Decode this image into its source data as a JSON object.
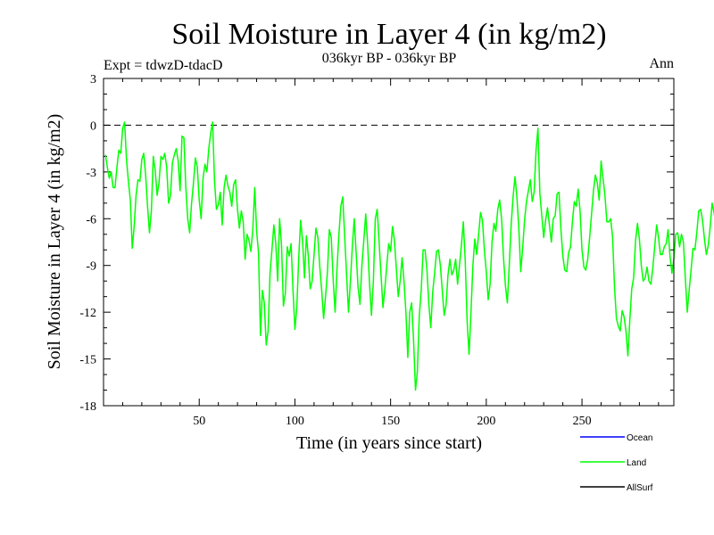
{
  "chart_data": {
    "type": "line",
    "title": "Soil Moisture in Layer 4 (in kg/m2)",
    "subtitle": "036kyr BP - 036kyr BP",
    "experiment": "Expt = tdwzD-tdacD",
    "period": "Ann",
    "xlabel": "Time (in years since start)",
    "ylabel": "Soil Moisture in Layer 4 (in kg/m2)",
    "xlim": [
      0,
      298
    ],
    "ylim": [
      -18,
      3
    ],
    "x_ticks": [
      50,
      100,
      150,
      200,
      250
    ],
    "x_tick_labels": [
      "50",
      "100",
      "150",
      "200",
      "250"
    ],
    "y_ticks": [
      3,
      0,
      -3,
      -6,
      -9,
      -12,
      -15,
      -18
    ],
    "y_tick_labels": [
      "3",
      "0",
      "-3",
      "-6",
      "-9",
      "-12",
      "-15",
      "-18"
    ],
    "reference_line": 0,
    "legend_position": "bottom-right",
    "series": [
      {
        "name": "Ocean",
        "color": "#0000ff",
        "values": []
      },
      {
        "name": "Land",
        "color": "#00ff00",
        "x_start": 1,
        "x_step": 1,
        "values": [
          -1.9,
          -2.7,
          -3.4,
          -3.0,
          -4.0,
          -4.0,
          -2.7,
          -1.6,
          -1.8,
          -0.2,
          0.2,
          -2.2,
          -3.6,
          -4.8,
          -7.9,
          -6.5,
          -4.5,
          -3.5,
          -3.6,
          -2.2,
          -1.8,
          -3.2,
          -5.2,
          -6.9,
          -5.5,
          -2.0,
          -2.9,
          -4.5,
          -3.7,
          -2.0,
          -2.2,
          -1.8,
          -2.7,
          -5.0,
          -4.5,
          -2.4,
          -1.9,
          -1.5,
          -2.3,
          -4.2,
          -0.7,
          -0.8,
          -4.0,
          -6.0,
          -6.9,
          -5.0,
          -3.7,
          -2.1,
          -2.7,
          -4.8,
          -6.0,
          -3.4,
          -2.5,
          -3.0,
          -1.5,
          -0.5,
          0.2,
          -3.6,
          -5.4,
          -5.1,
          -4.3,
          -6.4,
          -4.0,
          -3.2,
          -3.9,
          -4.3,
          -5.2,
          -3.8,
          -3.5,
          -5.4,
          -6.6,
          -5.5,
          -6.2,
          -8.6,
          -7.0,
          -7.4,
          -8.1,
          -6.7,
          -4.0,
          -6.8,
          -8.2,
          -13.5,
          -10.6,
          -11.4,
          -14.1,
          -13.2,
          -9.5,
          -8.0,
          -6.4,
          -7.6,
          -10.0,
          -6.0,
          -7.7,
          -11.6,
          -10.8,
          -7.8,
          -8.4,
          -7.6,
          -10.6,
          -13.1,
          -11.7,
          -8.5,
          -6.1,
          -7.4,
          -9.8,
          -7.1,
          -8.4,
          -10.5,
          -10.0,
          -8.3,
          -6.6,
          -7.2,
          -9.1,
          -10.6,
          -12.4,
          -11.0,
          -9.4,
          -6.7,
          -7.2,
          -9.9,
          -12.0,
          -9.2,
          -7.0,
          -5.2,
          -4.6,
          -7.1,
          -9.6,
          -12.0,
          -10.0,
          -7.8,
          -6.0,
          -8.2,
          -10.4,
          -11.5,
          -9.0,
          -7.4,
          -5.7,
          -7.6,
          -10.2,
          -12.2,
          -10.0,
          -6.0,
          -5.4,
          -7.5,
          -9.6,
          -11.7,
          -10.5,
          -9.0,
          -7.6,
          -8.1,
          -6.5,
          -7.4,
          -9.2,
          -11.0,
          -10.0,
          -8.5,
          -10.0,
          -12.0,
          -14.9,
          -12.0,
          -11.4,
          -13.8,
          -17.0,
          -15.8,
          -12.2,
          -10.6,
          -8.0,
          -8.0,
          -9.3,
          -11.5,
          -13.0,
          -10.7,
          -9.5,
          -8.1,
          -8.0,
          -9.0,
          -10.6,
          -12.2,
          -11.5,
          -9.6,
          -8.6,
          -9.6,
          -9.3,
          -8.6,
          -10.2,
          -9.0,
          -7.7,
          -6.2,
          -8.7,
          -12.6,
          -14.7,
          -12.0,
          -9.0,
          -7.3,
          -8.3,
          -7.0,
          -5.6,
          -6.1,
          -8.0,
          -9.4,
          -11.2,
          -10.2,
          -7.5,
          -6.3,
          -6.8,
          -5.4,
          -4.8,
          -6.0,
          -8.5,
          -10.3,
          -11.4,
          -9.0,
          -6.4,
          -4.6,
          -3.3,
          -4.6,
          -6.6,
          -9.4,
          -7.9,
          -6.1,
          -4.9,
          -4.2,
          -3.5,
          -4.9,
          -4.3,
          -1.6,
          -0.2,
          -4.4,
          -5.8,
          -7.2,
          -6.1,
          -5.3,
          -6.4,
          -7.5,
          -6.0,
          -5.8,
          -4.4,
          -4.3,
          -6.7,
          -8.4,
          -9.3,
          -9.4,
          -8.2,
          -7.8,
          -6.2,
          -4.9,
          -5.2,
          -4.1,
          -5.5,
          -8.0,
          -9.1,
          -9.3,
          -8.6,
          -7.2,
          -5.7,
          -4.2,
          -3.2,
          -3.7,
          -4.8,
          -2.3,
          -3.4,
          -4.5,
          -6.2,
          -6.2,
          -6.0,
          -7.2,
          -10.4,
          -12.4,
          -12.9,
          -13.2,
          -11.9,
          -12.3,
          -13.2,
          -14.8,
          -12.5,
          -10.5,
          -9.8,
          -7.4,
          -6.3,
          -7.3,
          -9.0,
          -10.0,
          -9.8,
          -9.1,
          -10.0,
          -10.2,
          -9.2,
          -7.8,
          -6.4,
          -7.2,
          -8.3,
          -8.3,
          -7.8,
          -7.6,
          -6.7,
          -8.4,
          -9.5,
          -8.6,
          -7.0,
          -6.9,
          -7.8,
          -7.0,
          -7.5,
          -9.8,
          -12.0,
          -10.6,
          -9.3,
          -7.9,
          -8.0,
          -6.9,
          -5.5,
          -5.4,
          -6.1,
          -7.3,
          -8.3,
          -7.7,
          -6.5,
          -5.0,
          -5.6,
          -6.4,
          -5.7,
          -6.1,
          -4.8,
          -5.0,
          -5.9,
          -5.1,
          -6.2,
          -6.7,
          -5.3,
          -2.6,
          -1.8,
          -2.6,
          -3.7,
          -4.6,
          -4.8,
          -5.8,
          -5.4,
          -6.2,
          -5.0,
          -6.9,
          -8.3,
          -10.2,
          -10.6,
          -10.9,
          -11.4,
          -11.8,
          -12.6,
          -12.3,
          -11.6,
          -10.9,
          -10.4,
          -9.8
        ]
      },
      {
        "name": "AllSurf",
        "color": "#000000",
        "values": []
      }
    ]
  }
}
